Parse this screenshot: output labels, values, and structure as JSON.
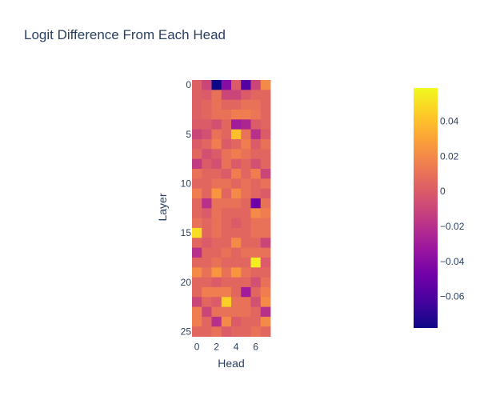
{
  "chart_data": {
    "type": "heatmap",
    "title": "Logit Difference From Each Head",
    "xlabel": "Head",
    "ylabel": "Layer",
    "x": [
      0,
      1,
      2,
      3,
      4,
      5,
      6,
      7
    ],
    "y": [
      0,
      1,
      2,
      3,
      4,
      5,
      6,
      7,
      8,
      9,
      10,
      11,
      12,
      13,
      14,
      15,
      16,
      17,
      18,
      19,
      20,
      21,
      22,
      23,
      24,
      25
    ],
    "x_ticks": [
      "0",
      "2",
      "4",
      "6"
    ],
    "y_ticks": [
      "0",
      "5",
      "10",
      "15",
      "20",
      "25"
    ],
    "zlim": [
      -0.078,
      0.059
    ],
    "colorbar_ticks": [
      "0.04",
      "0.02",
      "0",
      "−0.02",
      "−0.04",
      "−0.06"
    ],
    "colorscale": [
      "#0d0887",
      "#46039f",
      "#7201a8",
      "#9c179e",
      "#bd3786",
      "#d8576b",
      "#ed7953",
      "#fb9f3a",
      "#fdca26",
      "#f0f921"
    ],
    "z": [
      [
        0.002,
        -0.01,
        -0.078,
        -0.04,
        0.0,
        -0.058,
        -0.01,
        0.02
      ],
      [
        0.002,
        0.0,
        0.01,
        -0.01,
        -0.01,
        0.0,
        0.005,
        0.005
      ],
      [
        0.002,
        0.005,
        0.01,
        0.005,
        0.005,
        0.01,
        0.01,
        0.005
      ],
      [
        0.002,
        0.005,
        0.01,
        0.01,
        0.015,
        0.015,
        0.012,
        0.005
      ],
      [
        0.0,
        0.0,
        -0.005,
        0.005,
        -0.03,
        -0.025,
        0.0,
        0.005
      ],
      [
        -0.01,
        -0.005,
        0.01,
        0.005,
        0.04,
        0.01,
        -0.02,
        0.0
      ],
      [
        0.0,
        0.005,
        0.015,
        0.0,
        0.005,
        0.015,
        0.0,
        0.01
      ],
      [
        0.005,
        -0.005,
        0.0,
        0.01,
        0.015,
        0.01,
        0.005,
        0.005
      ],
      [
        -0.015,
        0.0,
        -0.005,
        0.01,
        0.0,
        0.005,
        -0.005,
        0.005
      ],
      [
        0.01,
        0.005,
        0.005,
        0.0,
        0.015,
        0.005,
        0.015,
        -0.01
      ],
      [
        0.005,
        0.005,
        0.01,
        0.01,
        0.005,
        0.01,
        0.005,
        0.01
      ],
      [
        0.015,
        0.005,
        0.025,
        0.005,
        0.02,
        0.01,
        0.005,
        0.0
      ],
      [
        0.005,
        -0.02,
        0.01,
        0.01,
        0.01,
        0.005,
        -0.05,
        0.01
      ],
      [
        0.005,
        0.0,
        0.01,
        0.005,
        0.005,
        0.005,
        0.02,
        0.015
      ],
      [
        0.01,
        0.005,
        0.01,
        0.005,
        0.0,
        0.005,
        0.01,
        0.01
      ],
      [
        0.05,
        0.005,
        0.01,
        0.005,
        0.005,
        0.005,
        0.01,
        0.01
      ],
      [
        0.005,
        0.0,
        0.005,
        0.005,
        0.02,
        0.005,
        0.005,
        -0.01
      ],
      [
        -0.02,
        0.005,
        0.005,
        0.01,
        0.005,
        0.01,
        0.01,
        0.01
      ],
      [
        0.005,
        0.005,
        0.01,
        0.005,
        0.005,
        0.005,
        0.055,
        0.0
      ],
      [
        0.02,
        0.01,
        0.025,
        0.01,
        0.025,
        0.01,
        0.005,
        0.005
      ],
      [
        0.005,
        0.005,
        0.0,
        0.005,
        0.005,
        0.005,
        -0.005,
        0.01
      ],
      [
        0.005,
        0.015,
        0.015,
        0.015,
        0.005,
        -0.03,
        0.005,
        0.015
      ],
      [
        -0.01,
        0.005,
        0.0,
        0.045,
        0.01,
        0.01,
        -0.005,
        0.02
      ],
      [
        0.015,
        -0.01,
        0.01,
        0.01,
        0.01,
        0.01,
        0.005,
        -0.02
      ],
      [
        0.015,
        0.005,
        -0.02,
        0.02,
        0.0,
        0.005,
        0.005,
        0.02
      ],
      [
        0.005,
        0.005,
        0.01,
        0.0,
        0.005,
        0.005,
        0.01,
        0.005
      ]
    ]
  }
}
